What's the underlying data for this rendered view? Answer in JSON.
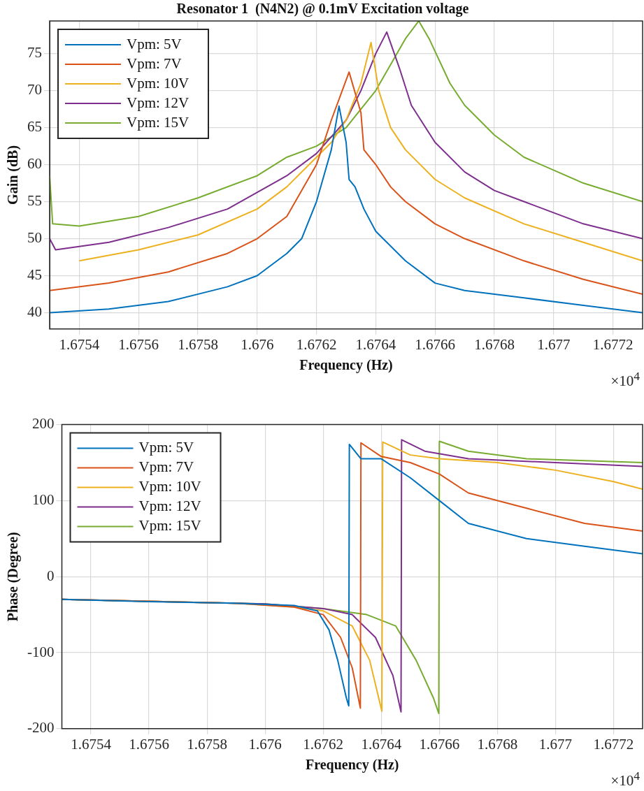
{
  "chart_data": [
    {
      "type": "line",
      "title": "Resonator 1  (N4N2) @ 0.1mV Excitation voltage",
      "xlabel": "Frequency (Hz)",
      "ylabel": "Gain (dB)",
      "annotations": [
        "×10$^{4}$"
      ],
      "xlim": [
        1.6753,
        1.6773
      ],
      "ylim": [
        37.8,
        79.4
      ],
      "xticks": [
        1.6754,
        1.6756,
        1.6758,
        1.676,
        1.6762,
        1.6764,
        1.6766,
        1.6768,
        1.677,
        1.6772
      ],
      "yticks": [
        40,
        45,
        50,
        55,
        60,
        65,
        70,
        75
      ],
      "grid": true,
      "legend": "top left",
      "line_style": "solid",
      "series": [
        {
          "name": "Vpm: 5V",
          "color": "#0072bd",
          "x": [
            1.6753,
            1.6755,
            1.6757,
            1.6759,
            1.676,
            1.6761,
            1.67615,
            1.6762,
            1.67625,
            1.676276,
            1.6763,
            1.67631,
            1.67633,
            1.67636,
            1.6764,
            1.6765,
            1.6766,
            1.6767,
            1.6769,
            1.6771,
            1.6773
          ],
          "values": [
            40,
            40.5,
            41.5,
            43.5,
            45,
            48,
            50,
            55,
            62,
            67.9,
            63,
            58,
            57,
            54,
            51,
            47,
            44,
            43,
            42,
            41,
            40
          ]
        },
        {
          "name": "Vpm: 7V",
          "color": "#d95319",
          "x": [
            1.6753,
            1.6755,
            1.6757,
            1.6759,
            1.676,
            1.6761,
            1.6762,
            1.67625,
            1.67631,
            1.67635,
            1.67636,
            1.6764,
            1.67645,
            1.6765,
            1.6766,
            1.6767,
            1.6769,
            1.6771,
            1.6773
          ],
          "values": [
            43,
            44,
            45.5,
            48,
            50,
            53,
            60,
            66,
            72.5,
            67,
            62,
            60,
            57,
            55,
            52,
            50,
            47,
            44.5,
            42.5
          ]
        },
        {
          "name": "Vpm: 10V",
          "color": "#edb120",
          "x": [
            1.6754,
            1.6756,
            1.6758,
            1.676,
            1.6761,
            1.6762,
            1.67625,
            1.6763,
            1.67635,
            1.676384,
            1.67641,
            1.67645,
            1.6765,
            1.6766,
            1.6767,
            1.6769,
            1.6771,
            1.6773
          ],
          "values": [
            47,
            48.5,
            50.5,
            54,
            57,
            61,
            63,
            66,
            71,
            76.5,
            70,
            65,
            62,
            58,
            55.5,
            52,
            49.5,
            47
          ]
        },
        {
          "name": "Vpm: 12V",
          "color": "#7e2f8e",
          "x": [
            1.6753,
            1.67532,
            1.6755,
            1.6757,
            1.6759,
            1.6761,
            1.6762,
            1.6763,
            1.67635,
            1.6764,
            1.676437,
            1.67648,
            1.67652,
            1.6766,
            1.6767,
            1.6768,
            1.6769,
            1.6771,
            1.6773
          ],
          "values": [
            50,
            48.5,
            49.5,
            51.5,
            54,
            58.5,
            61.5,
            66,
            70,
            75,
            77.9,
            73,
            68,
            63,
            59,
            56.5,
            55,
            52,
            50
          ]
        },
        {
          "name": "Vpm: 15V",
          "color": "#77ac30",
          "x": [
            1.6753,
            1.67531,
            1.6754,
            1.6756,
            1.6758,
            1.676,
            1.6761,
            1.6762,
            1.6763,
            1.6764,
            1.67645,
            1.6765,
            1.676545,
            1.67658,
            1.67665,
            1.6767,
            1.6768,
            1.6769,
            1.6771,
            1.6773
          ],
          "values": [
            58.5,
            52,
            51.7,
            53,
            55.5,
            58.5,
            61,
            62.5,
            65,
            70,
            73.5,
            77,
            79.4,
            77,
            71,
            68,
            64,
            61,
            57.5,
            55
          ]
        }
      ]
    },
    {
      "type": "line",
      "xlabel": "Frequency (Hz)",
      "ylabel": "Phase (Degree)",
      "annotations": [
        "×10$^{4}$"
      ],
      "xlim": [
        1.6753,
        1.6773
      ],
      "ylim": [
        -200,
        200
      ],
      "xticks": [
        1.6754,
        1.6756,
        1.6758,
        1.676,
        1.6762,
        1.6764,
        1.6766,
        1.6768,
        1.677,
        1.6772
      ],
      "yticks": [
        -200,
        -100,
        0,
        100,
        200
      ],
      "grid": true,
      "legend": "top left",
      "line_style": "solid",
      "series": [
        {
          "name": "Vpm: 5V",
          "color": "#0072bd",
          "x": [
            1.6753,
            1.6756,
            1.6759,
            1.6761,
            1.67618,
            1.67622,
            1.67625,
            1.67628,
            1.676288,
            1.67629,
            1.67633,
            1.6764,
            1.6765,
            1.6766,
            1.6767,
            1.6769,
            1.6771,
            1.6773
          ],
          "values": [
            -30,
            -33,
            -35,
            -38,
            -45,
            -70,
            -110,
            -160,
            -170,
            174,
            155,
            155,
            130,
            100,
            70,
            50,
            40,
            30
          ]
        },
        {
          "name": "Vpm: 7V",
          "color": "#d95319",
          "x": [
            1.6753,
            1.6759,
            1.6761,
            1.6762,
            1.67626,
            1.6763,
            1.676328,
            1.67633,
            1.6764,
            1.6765,
            1.6766,
            1.6767,
            1.6769,
            1.6771,
            1.6773
          ],
          "values": [
            -30,
            -35,
            -40,
            -50,
            -80,
            -120,
            -173,
            176,
            158,
            150,
            135,
            110,
            90,
            70,
            60
          ]
        },
        {
          "name": "Vpm: 10V",
          "color": "#edb120",
          "x": [
            1.6753,
            1.6759,
            1.6761,
            1.6762,
            1.6763,
            1.67636,
            1.676402,
            1.676405,
            1.6765,
            1.6766,
            1.6768,
            1.677,
            1.6772,
            1.6773
          ],
          "values": [
            -30,
            -35,
            -40,
            -45,
            -65,
            -110,
            -177,
            177,
            160,
            155,
            150,
            140,
            125,
            115
          ]
        },
        {
          "name": "Vpm: 12V",
          "color": "#7e2f8e",
          "x": [
            1.6753,
            1.676,
            1.6762,
            1.6763,
            1.67638,
            1.67644,
            1.676468,
            1.67647,
            1.67655,
            1.6767,
            1.677,
            1.6773
          ],
          "values": [
            -30,
            -36,
            -42,
            -50,
            -80,
            -130,
            -178,
            180,
            165,
            155,
            150,
            145
          ]
        },
        {
          "name": "Vpm: 15V",
          "color": "#77ac30",
          "x": [
            1.6753,
            1.676,
            1.6762,
            1.67635,
            1.67645,
            1.67652,
            1.67658,
            1.676598,
            1.6766,
            1.6767,
            1.6769,
            1.6773
          ],
          "values": [
            -30,
            -36,
            -42,
            -50,
            -65,
            -110,
            -160,
            -180,
            178,
            165,
            155,
            150
          ]
        }
      ]
    }
  ]
}
